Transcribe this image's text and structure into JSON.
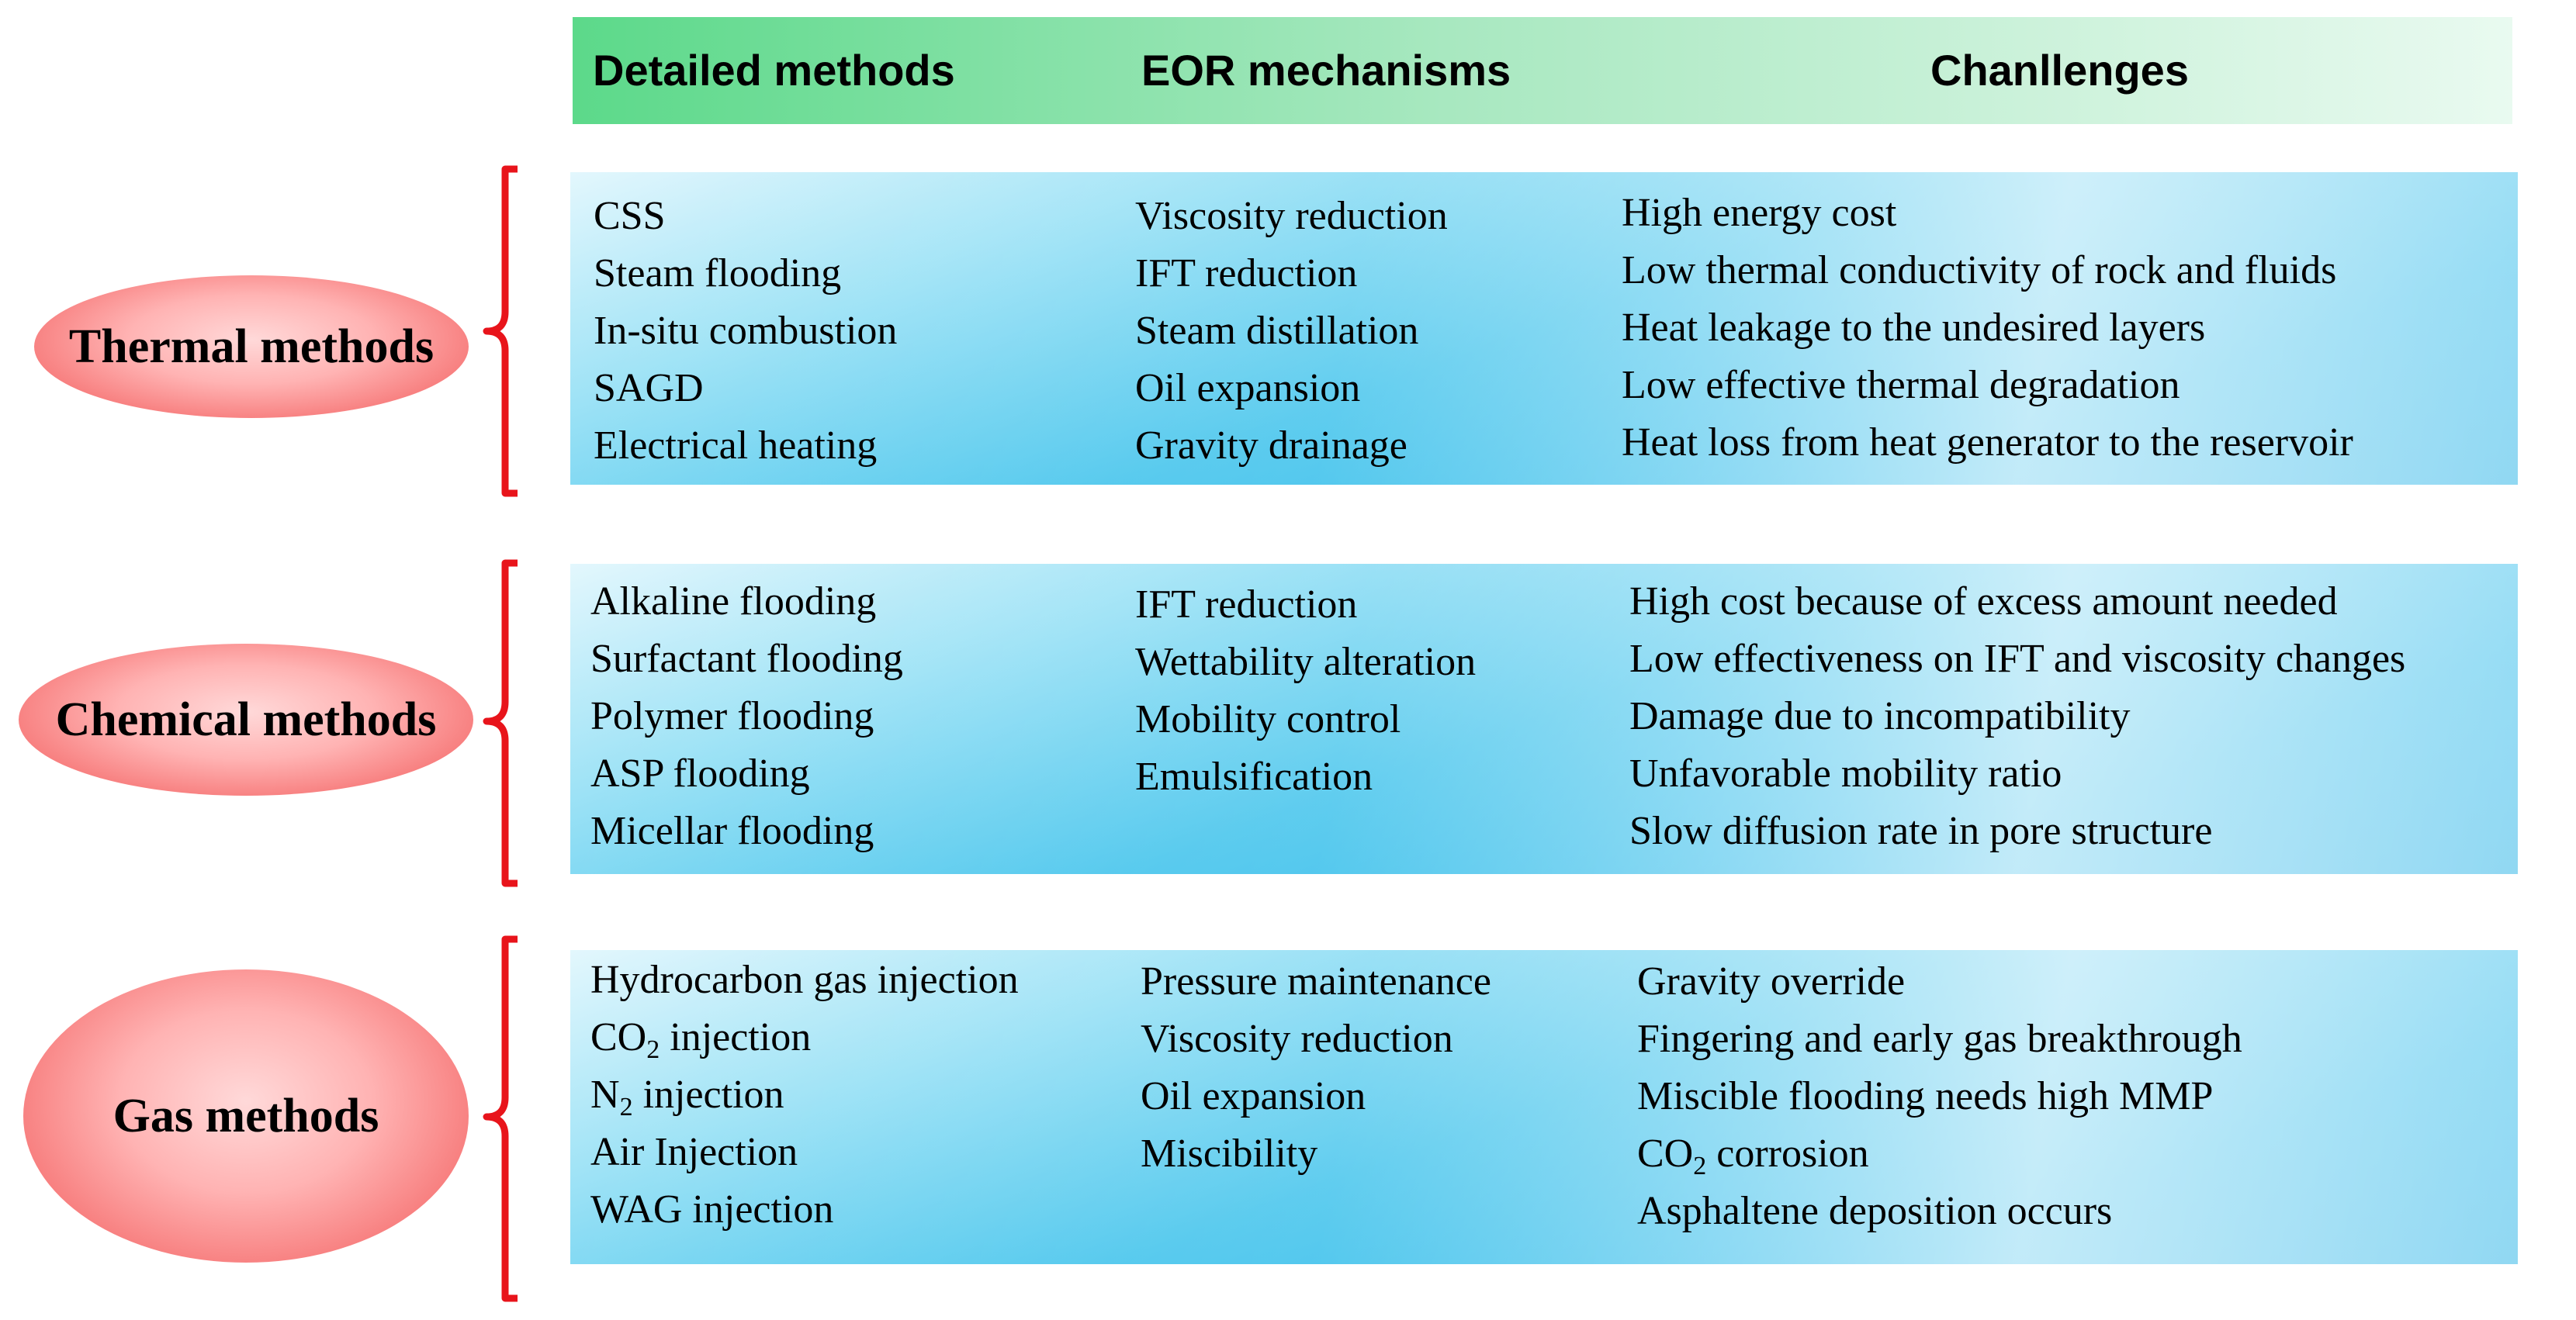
{
  "headers": {
    "methods": "Detailed methods",
    "mechanisms": "EOR mechanisms",
    "challenges": "Chanllenges"
  },
  "categories": [
    {
      "label": "Thermal methods",
      "methods": [
        "CSS",
        "Steam flooding",
        "In-situ combustion",
        "SAGD",
        "Electrical heating"
      ],
      "mechanisms": [
        "Viscosity reduction",
        "IFT reduction",
        "Steam distillation",
        "Oil expansion",
        "Gravity drainage"
      ],
      "challenges": [
        "High energy cost",
        "Low thermal conductivity of rock and fluids",
        "Heat leakage to the undesired layers",
        "Low effective thermal degradation",
        "Heat loss from heat generator to the reservoir"
      ]
    },
    {
      "label": "Chemical methods",
      "methods": [
        "Alkaline flooding",
        "Surfactant flooding",
        "Polymer flooding",
        "ASP flooding",
        "Micellar flooding"
      ],
      "mechanisms": [
        "IFT reduction",
        "Wettability alteration",
        "Mobility control",
        "Emulsification"
      ],
      "challenges": [
        "High cost because of excess amount needed",
        "Low effectiveness on IFT and viscosity changes",
        "Damage due to incompatibility",
        "Unfavorable mobility ratio",
        "Slow diffusion rate in pore structure"
      ]
    },
    {
      "label": "Gas methods",
      "methods": [
        {
          "text": "Hydrocarbon gas injection"
        },
        {
          "pre": "CO",
          "sub": "2",
          "post": " injection"
        },
        {
          "pre": "N",
          "sub": "2",
          "post": " injection"
        },
        {
          "text": "Air Injection"
        },
        {
          "text": "WAG injection"
        }
      ],
      "mechanisms": [
        "Pressure maintenance",
        "Viscosity reduction",
        "Oil expansion",
        "Miscibility"
      ],
      "challenges": [
        {
          "text": "Gravity override"
        },
        {
          "text": "Fingering and early gas breakthrough"
        },
        {
          "text": "Miscible flooding needs high MMP"
        },
        {
          "pre": "CO",
          "sub": "2",
          "post": " corrosion"
        },
        {
          "text": "Asphaltene deposition occurs"
        }
      ]
    }
  ],
  "colors": {
    "brace": "#e8141b",
    "header_green": "#5cd98a",
    "panel_blue": "#0aa8e3",
    "oval_red": "#f15f5f"
  }
}
